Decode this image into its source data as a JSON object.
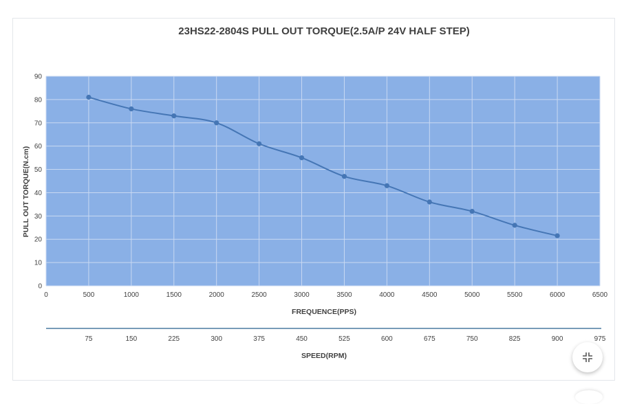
{
  "chart_data": {
    "type": "line",
    "title": "23HS22-2804S PULL OUT TORQUE(2.5A/P 24V HALF STEP)",
    "xlabel": "FREQUENCE(PPS)",
    "ylabel": "PULL OUT TORQUE(N.cm)",
    "secondary_xlabel": "SPEED(RPM)",
    "x_ticks": [
      "0",
      "500",
      "1000",
      "1500",
      "2000",
      "2500",
      "3000",
      "3500",
      "4000",
      "4500",
      "5000",
      "5500",
      "6000",
      "6500"
    ],
    "secondary_x_ticks": [
      "75",
      "150",
      "225",
      "300",
      "375",
      "450",
      "525",
      "600",
      "675",
      "750",
      "825",
      "900",
      "975"
    ],
    "y_ticks": [
      "0",
      "10",
      "20",
      "30",
      "40",
      "50",
      "60",
      "70",
      "80",
      "90"
    ],
    "xlim": [
      0,
      6500
    ],
    "ylim": [
      0,
      90
    ],
    "grid": true,
    "legend": "none",
    "series": [
      {
        "x": [
          500,
          1000,
          1500,
          2000,
          2500,
          3000,
          3500,
          4000,
          4500,
          5000,
          5500,
          6000
        ],
        "values": [
          81,
          76,
          73,
          70,
          61,
          55,
          47,
          43,
          36,
          32,
          26,
          21.5
        ]
      }
    ]
  },
  "colors": {
    "plot_background": "#8ab0e6",
    "grid": "#c9d9f2",
    "line": "#4576b5",
    "text": "#404040"
  },
  "controls": {
    "collapse_icon": "collapse-arrows-icon"
  }
}
